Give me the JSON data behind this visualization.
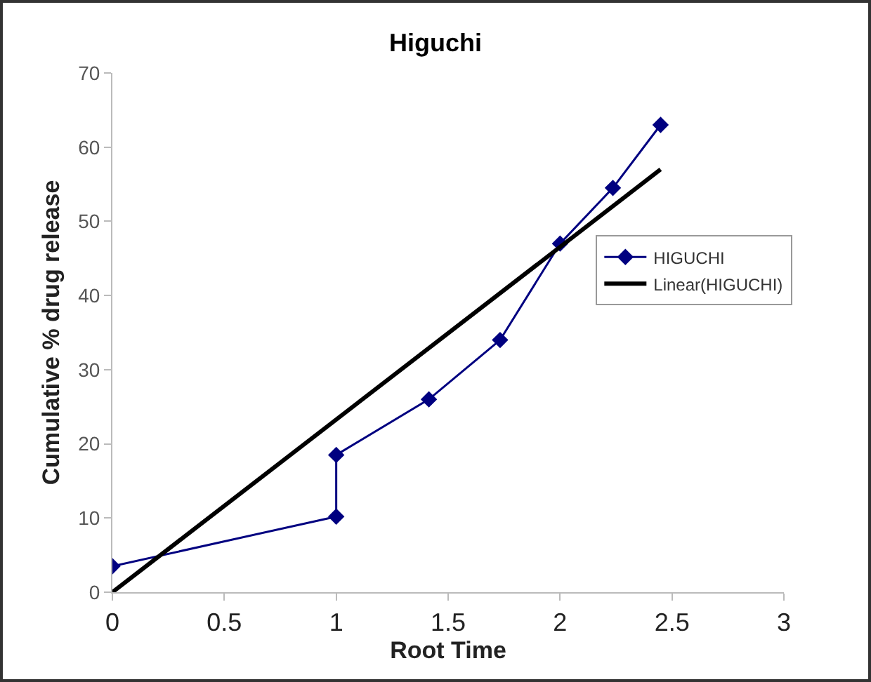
{
  "chart_data": {
    "type": "line",
    "title": "Higuchi",
    "xlabel": "Root Time",
    "ylabel": "Cumulative % drug release",
    "xlim": [
      0,
      3
    ],
    "xticks": [
      0,
      0.5,
      1,
      1.5,
      2,
      2.5,
      3
    ],
    "ylim": [
      0,
      70
    ],
    "yticks": [
      0,
      10,
      20,
      30,
      40,
      50,
      60,
      70
    ],
    "grid": false,
    "legend": "right",
    "marker": "diamond",
    "series": [
      {
        "name": "HIGUCHI",
        "color": "#000080",
        "x": [
          0,
          1,
          1,
          1.414,
          1.732,
          2,
          2.236,
          2.449
        ],
        "values": [
          3.5,
          10.2,
          18.5,
          26,
          34,
          47,
          54.5,
          63
        ]
      },
      {
        "name": "Linear(HIGUCHI)",
        "color": "#000000",
        "type": "line",
        "x": [
          0,
          2.449
        ],
        "values": [
          0,
          57
        ],
        "marker": "none"
      }
    ]
  }
}
